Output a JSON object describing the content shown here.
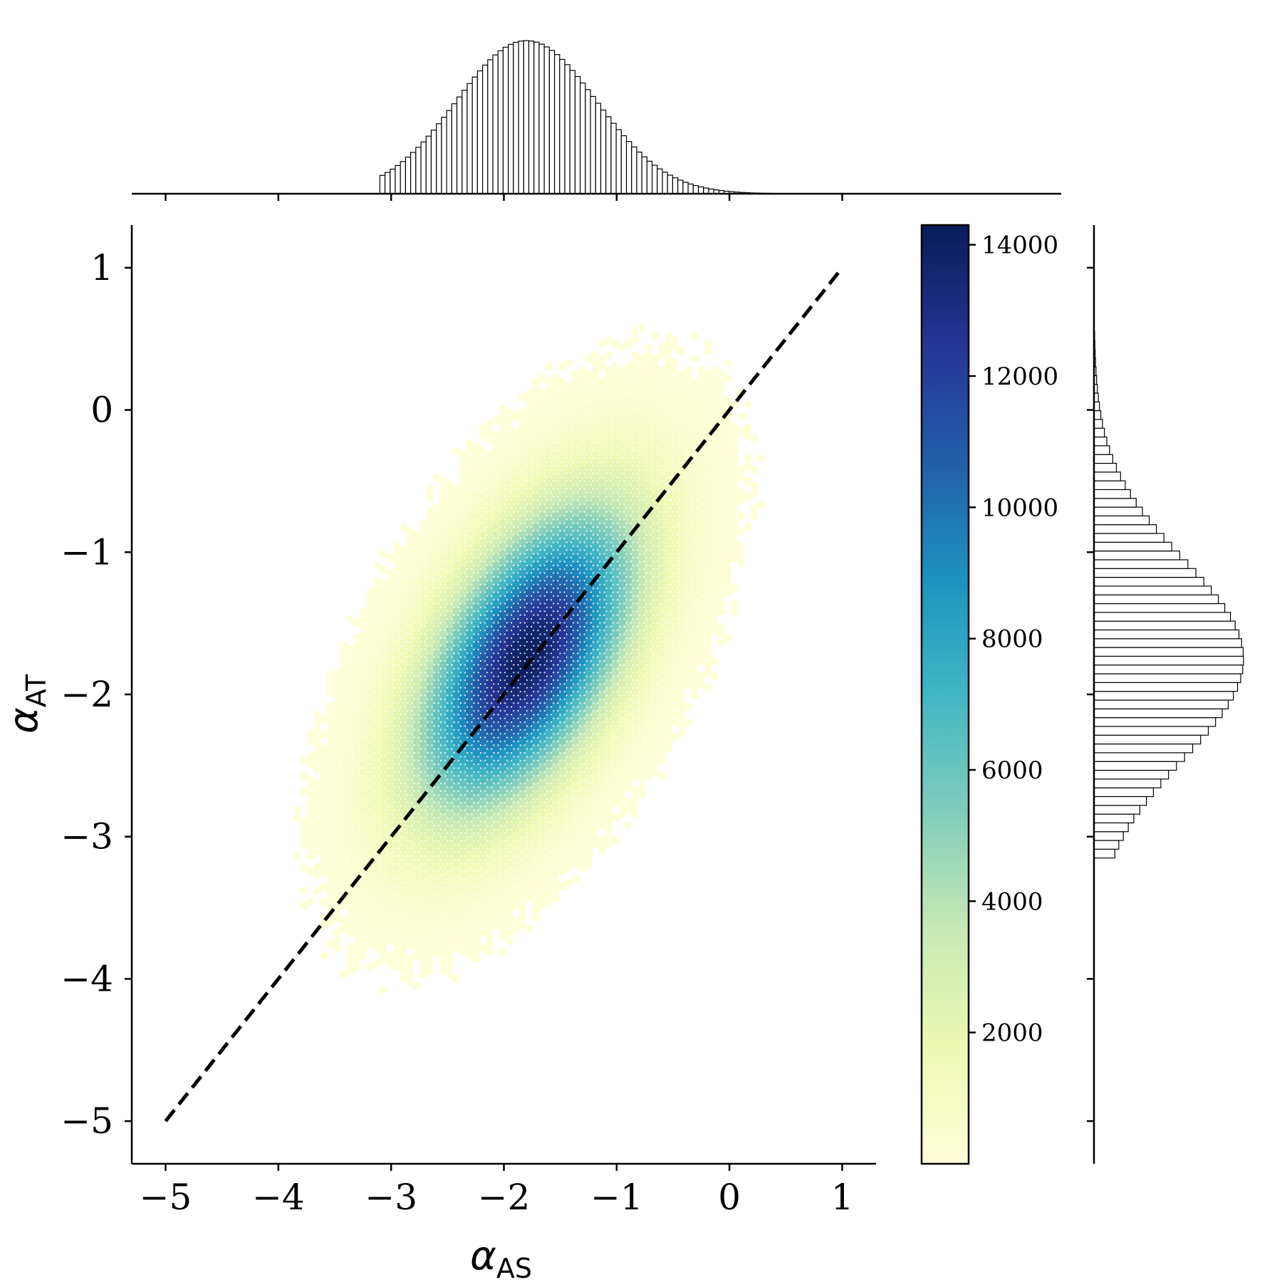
{
  "chart_data": {
    "type": "hexbin-jointplot",
    "main": {
      "xlabel": {
        "main": "α",
        "sub": "AS"
      },
      "ylabel": {
        "main": "α",
        "sub": "AT"
      },
      "xlim": [
        -5.3,
        1.3
      ],
      "ylim": [
        -5.3,
        1.3
      ],
      "xticks": [
        -5,
        -4,
        -3,
        -2,
        -1,
        0,
        1
      ],
      "yticks": [
        -5,
        -4,
        -3,
        -2,
        -1,
        0,
        1
      ],
      "xtick_labels": [
        "−5",
        "−4",
        "−3",
        "−2",
        "−1",
        "0",
        "1"
      ],
      "ytick_labels": [
        "−5",
        "−4",
        "−3",
        "−2",
        "−1",
        "0",
        "1"
      ],
      "density": {
        "mean_x": -1.8,
        "mean_y": -1.75,
        "std_x": 0.62,
        "std_y": 0.69,
        "correlation": 0.55,
        "peak_count": 14200
      },
      "reference_line": {
        "style": "dashed",
        "color": "#000000",
        "from": [
          -5,
          -5
        ],
        "to": [
          1,
          1
        ]
      }
    },
    "colorbar": {
      "ticks": [
        2000,
        4000,
        6000,
        8000,
        10000,
        12000,
        14000
      ],
      "tick_labels": [
        "2000",
        "4000",
        "6000",
        "8000",
        "10000",
        "12000",
        "14000"
      ],
      "range": [
        0,
        14300
      ],
      "colormap_stops": [
        "#ffffd9",
        "#edf8b1",
        "#c7e9b4",
        "#7fcdbb",
        "#41b6c4",
        "#1d91c0",
        "#225ea8",
        "#253494",
        "#081d58"
      ]
    },
    "marginal_x": {
      "type": "histogram",
      "orientation": "vertical",
      "mean": -1.8,
      "std": 0.62,
      "range": [
        -3.1,
        1.0
      ],
      "bins": 90
    },
    "marginal_y": {
      "type": "histogram",
      "orientation": "horizontal",
      "mean": -1.75,
      "std": 0.69,
      "range": [
        -3.15,
        0.55
      ],
      "bins": 60
    }
  }
}
